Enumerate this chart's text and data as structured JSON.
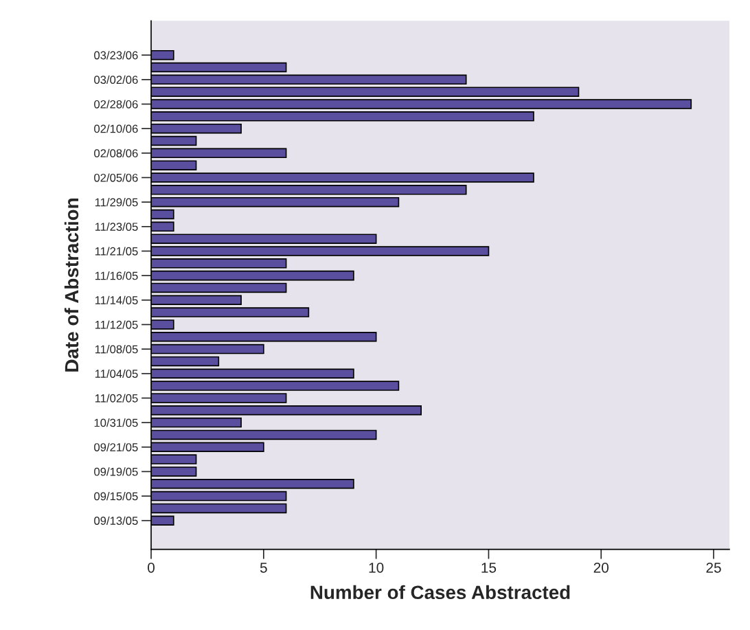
{
  "chart_data": {
    "type": "bar",
    "orientation": "horizontal",
    "xlabel": "Number of Cases Abstracted",
    "ylabel": "Date of Abstraction",
    "categories": [
      "03/23/06",
      null,
      "03/02/06",
      null,
      "02/28/06",
      null,
      "02/10/06",
      null,
      "02/08/06",
      null,
      "02/05/06",
      null,
      "11/29/05",
      null,
      "11/23/05",
      null,
      "11/21/05",
      null,
      "11/16/05",
      null,
      "11/14/05",
      null,
      "11/12/05",
      null,
      "11/08/05",
      null,
      "11/04/05",
      null,
      "11/02/05",
      null,
      "10/31/05",
      null,
      "09/21/05",
      null,
      "09/19/05",
      null,
      "09/15/05",
      null,
      "09/13/05"
    ],
    "values": [
      1,
      6,
      14,
      19,
      24,
      17,
      4,
      2,
      6,
      2,
      17,
      14,
      11,
      1,
      1,
      10,
      15,
      6,
      9,
      6,
      4,
      7,
      1,
      10,
      5,
      3,
      9,
      11,
      6,
      12,
      4,
      10,
      5,
      2,
      2,
      9,
      6,
      6,
      1
    ],
    "color": "#5a4f9e",
    "xlim": [
      0,
      25.7
    ],
    "xticks": [
      0,
      5,
      10,
      15,
      20,
      25
    ],
    "grid": false,
    "legend": false
  }
}
